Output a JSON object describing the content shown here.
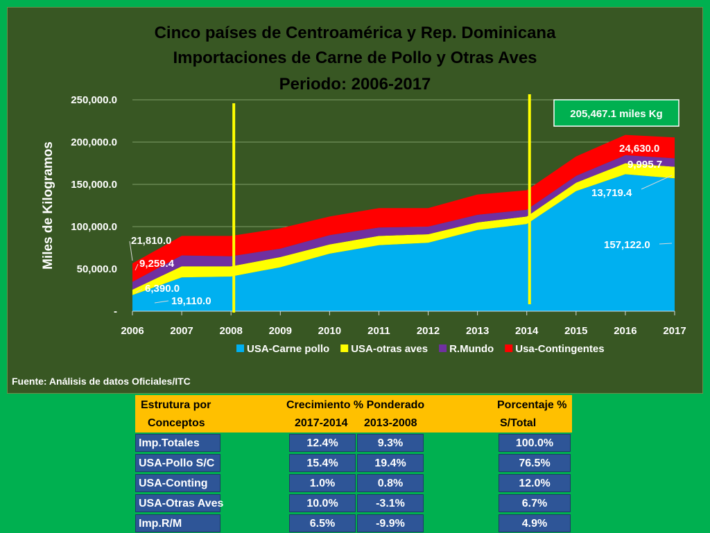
{
  "chart_data": {
    "type": "area",
    "stacked": true,
    "title": [
      "Cinco países de Centroamérica y Rep. Dominicana",
      "Importaciones de Carne de Pollo y Otras Aves",
      "Periodo: 2006-2017"
    ],
    "ylabel": "Miles de Kilogramos",
    "xlabel": "",
    "ylim": [
      0,
      250000
    ],
    "yticks": [
      0,
      50000,
      100000,
      150000,
      200000,
      250000
    ],
    "ytick_labels": [
      "-",
      "50,000.0",
      "100,000.0",
      "150,000.0",
      "200,000.0",
      "250,000.0"
    ],
    "x": [
      "2006",
      "2007",
      "2008",
      "2009",
      "2010",
      "2011",
      "2012",
      "2013",
      "2014",
      "2015",
      "2016",
      "2017"
    ],
    "series": [
      {
        "name": "USA-Carne pollo",
        "color": "#00b0f0",
        "values": [
          19110,
          40000,
          41000,
          52000,
          68000,
          78000,
          81000,
          96000,
          103000,
          142000,
          162000,
          157122
        ]
      },
      {
        "name": "USA-otras aves",
        "color": "#ffff00",
        "values": [
          6390,
          13000,
          12000,
          12000,
          11000,
          11000,
          10000,
          9000,
          9000,
          10000,
          13000,
          13719.4
        ]
      },
      {
        "name": "R.Mundo",
        "color": "#7030a0",
        "values": [
          9259.4,
          13000,
          12000,
          10000,
          11000,
          10000,
          9000,
          9000,
          8000,
          8000,
          9500,
          9995.7
        ]
      },
      {
        "name": "Usa-Contingentes",
        "color": "#ff0000",
        "values": [
          21810,
          23000,
          24000,
          24000,
          22000,
          23000,
          22000,
          24000,
          23000,
          23000,
          24000,
          24630
        ]
      }
    ],
    "data_labels": {
      "2006": [
        "19,110.0",
        "6,390.0",
        "9,259.4",
        "21,810.0"
      ],
      "2017": [
        "157,122.0",
        "13,719.4",
        "9,995.7",
        "24,630.0"
      ]
    },
    "vertical_markers": [
      "2008",
      "2014"
    ],
    "marker_color": "#ffff00",
    "callout": "205,467.1 miles Kg",
    "legend_position": "bottom",
    "grid": true
  },
  "source_note": "Fuente: Análisis de datos Oficiales/ITC",
  "table": {
    "header": {
      "col1_line1": "Estrutura por",
      "col1_line2": "Conceptos",
      "growth_title": "Crecimiento % Ponderado",
      "growth_col1": "2017-2014",
      "growth_col2": "2013-2008",
      "pct_title": "Porcentaje %",
      "pct_sub": "S/Total"
    },
    "rows": [
      {
        "label": "Imp.Totales",
        "g1": "12.4%",
        "g2": "9.3%",
        "pct": "100.0%"
      },
      {
        "label": "USA-Pollo S/C",
        "g1": "15.4%",
        "g2": "19.4%",
        "pct": "76.5%"
      },
      {
        "label": "USA-Conting",
        "g1": "1.0%",
        "g2": "0.8%",
        "pct": "12.0%"
      },
      {
        "label": "USA-Otras Aves",
        "g1": "10.0%",
        "g2": "-3.1%",
        "pct": "6.7%"
      },
      {
        "label": "Imp.R/M",
        "g1": "6.5%",
        "g2": "-9.9%",
        "pct": "4.9%"
      }
    ]
  }
}
